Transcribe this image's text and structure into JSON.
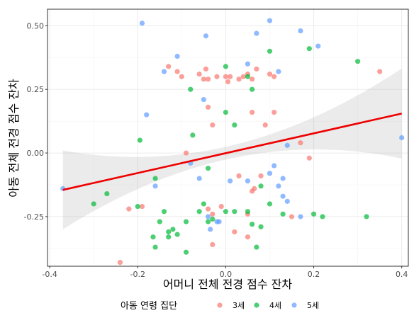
{
  "chart_data": {
    "type": "scatter",
    "xlabel": "어머니 전체 전경 점수 잔차",
    "ylabel": "아동 전체 전경 점수 잔차",
    "xlim": [
      -0.405,
      0.415
    ],
    "ylim": [
      -0.445,
      0.565
    ],
    "x_ticks": [
      -0.4,
      -0.2,
      0.0,
      0.2,
      0.4
    ],
    "x_tick_labels": [
      "-0.4",
      "-0.2",
      "0.0",
      "0.2",
      "0.4"
    ],
    "y_ticks": [
      -0.25,
      0.0,
      0.25,
      0.5
    ],
    "y_tick_labels": [
      "-0.25",
      "0.00",
      "0.25",
      "0.50"
    ],
    "grid": true,
    "legend": {
      "title": "아동 연령 집단",
      "position": "bottom"
    },
    "series": [
      {
        "name": "3세",
        "color": "#F8766D",
        "points": [
          [
            -0.13,
            0.34
          ],
          [
            -0.11,
            0.32
          ],
          [
            -0.1,
            0.3
          ],
          [
            -0.06,
            0.31
          ],
          [
            -0.05,
            0.29
          ],
          [
            -0.045,
            0.33
          ],
          [
            -0.04,
            0.29
          ],
          [
            -0.02,
            0.3
          ],
          [
            0.0,
            0.3
          ],
          [
            0.005,
            0.28
          ],
          [
            0.01,
            0.3
          ],
          [
            0.03,
            0.29
          ],
          [
            0.04,
            0.3
          ],
          [
            0.05,
            0.31
          ],
          [
            0.06,
            0.29
          ],
          [
            0.07,
            0.33
          ],
          [
            0.1,
            0.31
          ],
          [
            0.11,
            0.3
          ],
          [
            0.35,
            0.32
          ],
          [
            -0.04,
            0.18
          ],
          [
            0.06,
            0.16
          ],
          [
            0.11,
            0.16
          ],
          [
            -0.03,
            0.11
          ],
          [
            0.09,
            0.11
          ],
          [
            -0.09,
            0.0
          ],
          [
            0.17,
            0.04
          ],
          [
            0.19,
            -0.02
          ],
          [
            0.08,
            -0.09
          ],
          [
            0.03,
            -0.09
          ],
          [
            0.06,
            -0.15
          ],
          [
            -0.22,
            -0.22
          ],
          [
            -0.19,
            -0.21
          ],
          [
            -0.04,
            -0.22
          ],
          [
            -0.03,
            -0.24
          ],
          [
            0.05,
            -0.24
          ],
          [
            0.15,
            -0.25
          ],
          [
            -0.24,
            -0.43
          ],
          [
            -0.03,
            -0.36
          ],
          [
            0.05,
            -0.33
          ],
          [
            0.02,
            -0.31
          ],
          [
            -0.01,
            -0.21
          ],
          [
            0.065,
            -0.14
          ]
        ]
      },
      {
        "name": "4세",
        "color": "#00BA38",
        "points": [
          [
            -0.3,
            -0.2
          ],
          [
            -0.27,
            -0.16
          ],
          [
            -0.2,
            -0.21
          ],
          [
            -0.195,
            0.05
          ],
          [
            -0.16,
            -0.1
          ],
          [
            -0.16,
            -0.37
          ],
          [
            -0.165,
            -0.33
          ],
          [
            -0.15,
            -0.27
          ],
          [
            -0.14,
            -0.23
          ],
          [
            -0.13,
            -0.33
          ],
          [
            -0.13,
            -0.31
          ],
          [
            -0.12,
            -0.3
          ],
          [
            -0.09,
            -0.27
          ],
          [
            -0.08,
            0.25
          ],
          [
            -0.075,
            0.07
          ],
          [
            -0.06,
            -0.23
          ],
          [
            -0.04,
            -0.27
          ],
          [
            -0.05,
            -0.2
          ],
          [
            -0.03,
            -0.26
          ],
          [
            -0.04,
            -0.06
          ],
          [
            0.0,
            0.16
          ],
          [
            0.0,
            -0.23
          ],
          [
            0.02,
            0.11
          ],
          [
            0.0,
            0.34
          ],
          [
            0.02,
            -0.23
          ],
          [
            0.05,
            0.3
          ],
          [
            0.05,
            -0.23
          ],
          [
            0.06,
            -0.28
          ],
          [
            0.07,
            -0.37
          ],
          [
            0.08,
            -0.29
          ],
          [
            0.1,
            0.4
          ],
          [
            0.1,
            -0.2
          ],
          [
            0.13,
            -0.24
          ],
          [
            0.19,
            0.41
          ],
          [
            0.2,
            -0.24
          ],
          [
            0.22,
            -0.25
          ],
          [
            0.3,
            0.36
          ],
          [
            0.32,
            -0.25
          ],
          [
            -0.11,
            -0.32
          ],
          [
            -0.09,
            -0.39
          ],
          [
            0.06,
            0.25
          ],
          [
            0.08,
            -0.13
          ]
        ]
      },
      {
        "name": "5세",
        "color": "#619CFF",
        "points": [
          [
            -0.37,
            -0.14
          ],
          [
            -0.19,
            0.51
          ],
          [
            -0.18,
            0.15
          ],
          [
            -0.16,
            -0.13
          ],
          [
            -0.14,
            0.32
          ],
          [
            -0.11,
            0.38
          ],
          [
            -0.08,
            -0.04
          ],
          [
            -0.06,
            -0.1
          ],
          [
            -0.05,
            0.21
          ],
          [
            -0.045,
            0.46
          ],
          [
            -0.04,
            -0.25
          ],
          [
            -0.02,
            -0.27
          ],
          [
            -0.015,
            -0.27
          ],
          [
            -0.035,
            -0.3
          ],
          [
            0.01,
            -0.11
          ],
          [
            0.05,
            -0.11
          ],
          [
            0.05,
            0.35
          ],
          [
            0.07,
            0.47
          ],
          [
            0.1,
            0.52
          ],
          [
            0.1,
            -0.08
          ],
          [
            0.11,
            -0.05
          ],
          [
            0.12,
            -0.13
          ],
          [
            0.13,
            -0.1
          ],
          [
            0.13,
            -0.17
          ],
          [
            0.14,
            -0.19
          ],
          [
            0.14,
            0.03
          ],
          [
            0.17,
            -0.25
          ],
          [
            0.17,
            0.48
          ],
          [
            0.21,
            0.42
          ],
          [
            0.12,
            0.32
          ],
          [
            0.4,
            0.06
          ]
        ]
      }
    ],
    "regression": {
      "color": "#EE0000",
      "x": [
        -0.37,
        0.4
      ],
      "y": [
        -0.145,
        0.155
      ]
    }
  }
}
